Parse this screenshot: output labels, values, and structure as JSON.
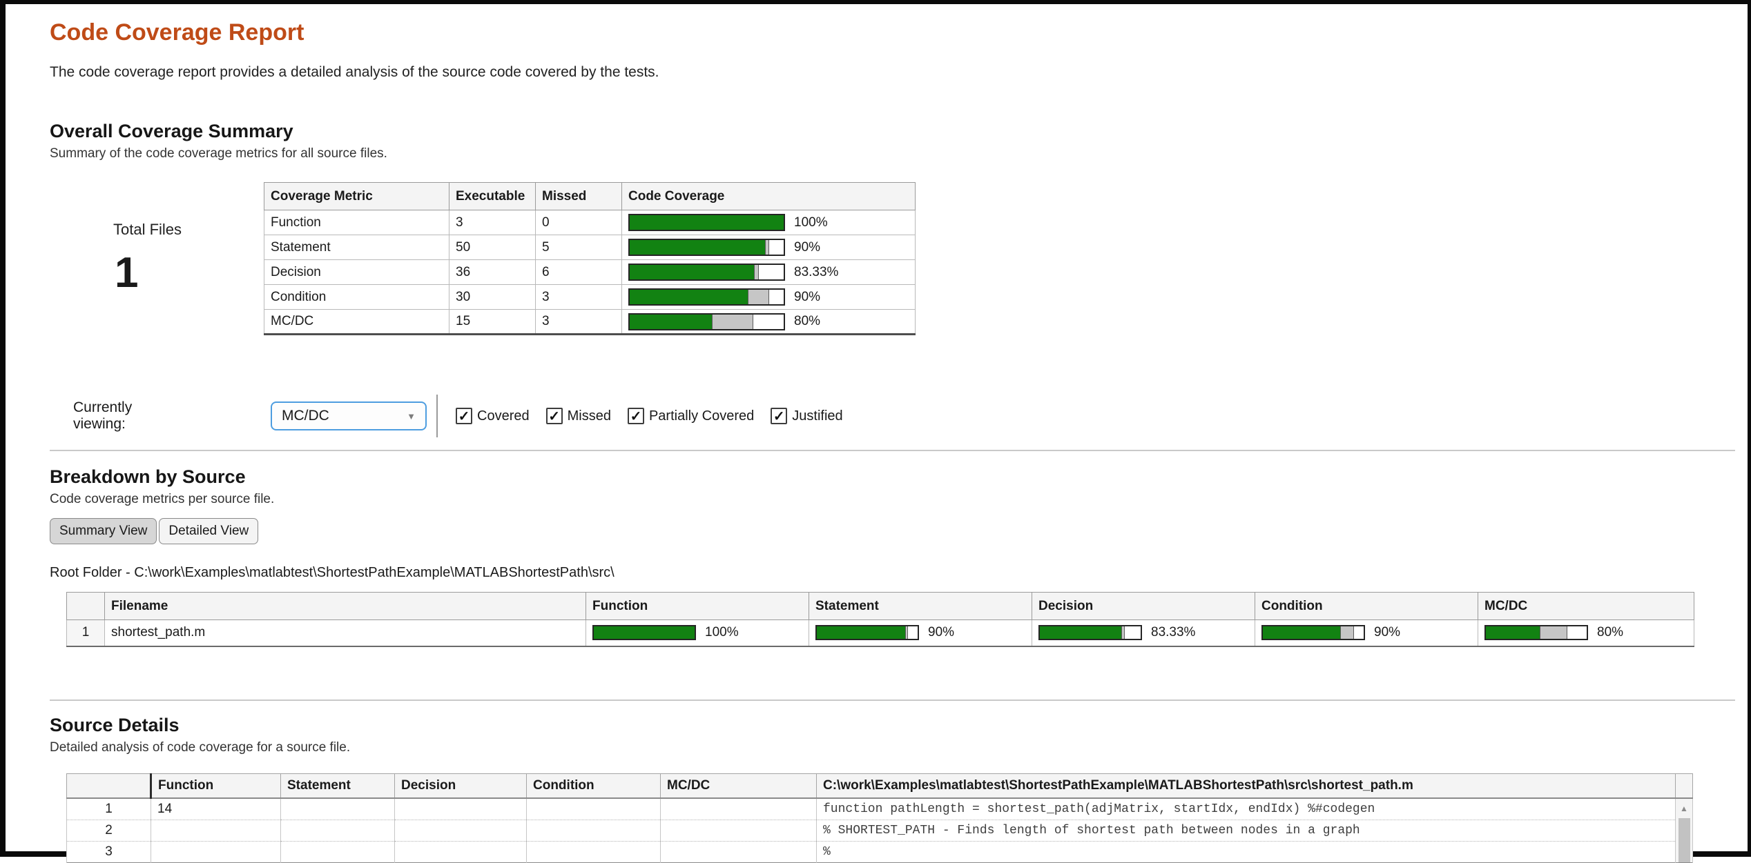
{
  "colors": {
    "accent": "#bf4b17",
    "covered_green": "#128212",
    "partial_gray": "#c6c6c6"
  },
  "icons": {
    "dropdown_arrow": "▼",
    "check": "✓",
    "scroll_up": "▲"
  },
  "page": {
    "title": "Code Coverage Report",
    "subtitle": "The code coverage report provides a detailed analysis of the source code covered by the tests."
  },
  "summary": {
    "heading": "Overall Coverage Summary",
    "caption": "Summary of the code coverage metrics for all source files.",
    "total_files_label": "Total Files",
    "total_files_value": "1",
    "table": {
      "headers": [
        "Coverage Metric",
        "Executable",
        "Missed",
        "Code Coverage"
      ],
      "rows": [
        {
          "metric": "Function",
          "executable": "3",
          "missed": "0",
          "bar": {
            "label": "100%",
            "covered": 100,
            "partial": 0
          }
        },
        {
          "metric": "Statement",
          "executable": "50",
          "missed": "5",
          "bar": {
            "label": "90%",
            "covered": 88,
            "partial": 2
          }
        },
        {
          "metric": "Decision",
          "executable": "36",
          "missed": "6",
          "bar": {
            "label": "83.33%",
            "covered": 80.5,
            "partial": 2.8
          }
        },
        {
          "metric": "Condition",
          "executable": "30",
          "missed": "3",
          "bar": {
            "label": "90%",
            "covered": 76.7,
            "partial": 13.3
          }
        },
        {
          "metric": "MC/DC",
          "executable": "15",
          "missed": "3",
          "bar": {
            "label": "80%",
            "covered": 53.3,
            "partial": 26.7
          }
        }
      ]
    }
  },
  "filter_bar": {
    "label": "Currently viewing:",
    "dropdown_value": "MC/DC",
    "checkboxes": [
      {
        "label": "Covered",
        "checked": true
      },
      {
        "label": "Missed",
        "checked": true
      },
      {
        "label": "Partially Covered",
        "checked": true
      },
      {
        "label": "Justified",
        "checked": true
      }
    ]
  },
  "breakdown": {
    "heading": "Breakdown by Source",
    "caption": "Code coverage metrics per source file.",
    "buttons": [
      {
        "label": "Summary View",
        "active": true
      },
      {
        "label": "Detailed View",
        "active": false
      }
    ],
    "root_folder": "Root Folder - C:\\work\\Examples\\matlabtest\\ShortestPathExample\\MATLABShortestPath\\src\\",
    "table": {
      "headers": [
        "",
        "Filename",
        "Function",
        "Statement",
        "Decision",
        "Condition",
        "MC/DC"
      ],
      "rows": [
        {
          "index": "1",
          "filename": "shortest_path.m",
          "metrics": [
            {
              "label": "100%",
              "covered": 100,
              "partial": 0
            },
            {
              "label": "90%",
              "covered": 88,
              "partial": 2
            },
            {
              "label": "83.33%",
              "covered": 80.5,
              "partial": 2.8
            },
            {
              "label": "90%",
              "covered": 76.7,
              "partial": 13.3
            },
            {
              "label": "80%",
              "covered": 53.3,
              "partial": 26.7
            }
          ]
        }
      ]
    }
  },
  "source_details": {
    "heading": "Source Details",
    "caption": "Detailed analysis of code coverage for a source file.",
    "table": {
      "headers": [
        "",
        "Function",
        "Statement",
        "Decision",
        "Condition",
        "MC/DC"
      ],
      "file_header": "C:\\work\\Examples\\matlabtest\\ShortestPathExample\\MATLABShortestPath\\src\\shortest_path.m",
      "rows": [
        {
          "line": "1",
          "function": "14",
          "statement": "",
          "decision": "",
          "condition": "",
          "mcdc": "",
          "code": "function pathLength = shortest_path(adjMatrix, startIdx, endIdx) %#codegen"
        },
        {
          "line": "2",
          "function": "",
          "statement": "",
          "decision": "",
          "condition": "",
          "mcdc": "",
          "code": "% SHORTEST_PATH - Finds length of shortest path between nodes in a graph"
        },
        {
          "line": "3",
          "function": "",
          "statement": "",
          "decision": "",
          "condition": "",
          "mcdc": "",
          "code": "%"
        }
      ]
    }
  }
}
